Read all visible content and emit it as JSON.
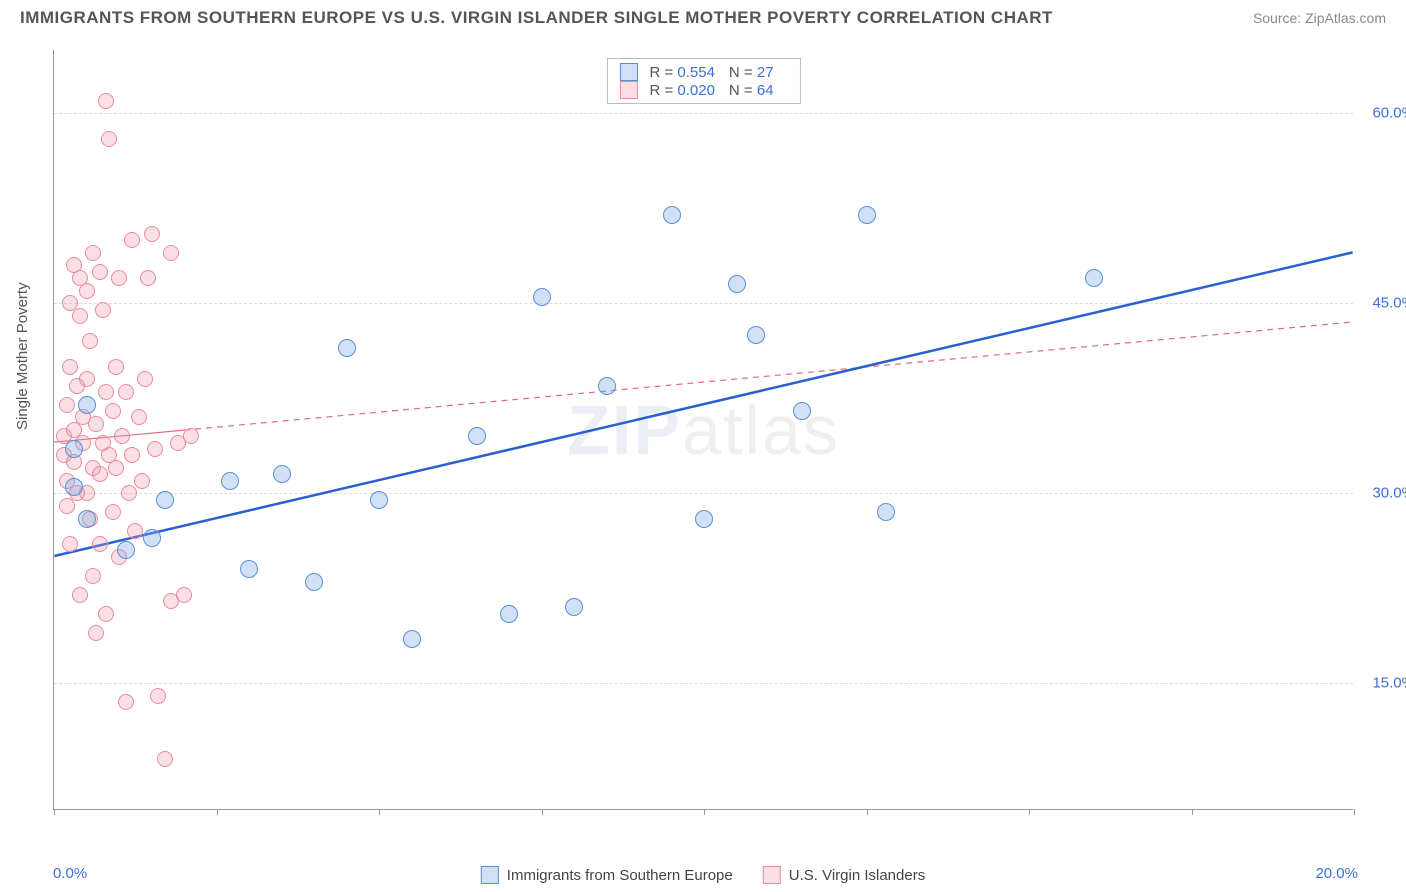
{
  "header": {
    "title": "IMMIGRANTS FROM SOUTHERN EUROPE VS U.S. VIRGIN ISLANDER SINGLE MOTHER POVERTY CORRELATION CHART",
    "source": "Source: ZipAtlas.com"
  },
  "ylabel": "Single Mother Poverty",
  "watermark_a": "ZIP",
  "watermark_b": "atlas",
  "chart": {
    "type": "scatter",
    "xlim": [
      0,
      20
    ],
    "ylim": [
      5,
      65
    ],
    "y_gridlines": [
      15,
      30,
      45,
      60
    ],
    "y_tick_labels": [
      "15.0%",
      "30.0%",
      "45.0%",
      "60.0%"
    ],
    "x_ticks": [
      0,
      2.5,
      5,
      7.5,
      10,
      12.5,
      15,
      17.5,
      20
    ],
    "x_min_label": "0.0%",
    "x_max_label": "20.0%",
    "grid_color": "#dddddd",
    "axis_color": "#999999",
    "background_color": "#ffffff",
    "label_color": "#3b6fd6",
    "series": {
      "blue": {
        "label": "Immigrants from Southern Europe",
        "color_fill": "rgba(120,170,230,0.35)",
        "color_stroke": "#5b8fd6",
        "marker_size": 18,
        "R": "0.554",
        "N": "27",
        "trend": {
          "x1": 0,
          "y1": 25,
          "x2": 20,
          "y2": 49,
          "stroke": "#2a5fd0",
          "width": 2.5,
          "dash": "none"
        },
        "points": [
          [
            0.3,
            30.5
          ],
          [
            0.3,
            33.5
          ],
          [
            0.5,
            28
          ],
          [
            0.5,
            37
          ],
          [
            1.1,
            25.5
          ],
          [
            1.5,
            26.5
          ],
          [
            1.7,
            29.5
          ],
          [
            2.7,
            31
          ],
          [
            3.0,
            24
          ],
          [
            3.5,
            31.5
          ],
          [
            4.0,
            23
          ],
          [
            4.5,
            41.5
          ],
          [
            5.0,
            29.5
          ],
          [
            5.5,
            18.5
          ],
          [
            6.5,
            34.5
          ],
          [
            7.0,
            20.5
          ],
          [
            7.5,
            45.5
          ],
          [
            8.0,
            21
          ],
          [
            8.5,
            38.5
          ],
          [
            9.5,
            52
          ],
          [
            10.0,
            28
          ],
          [
            10.5,
            46.5
          ],
          [
            10.8,
            42.5
          ],
          [
            11.5,
            36.5
          ],
          [
            12.5,
            52
          ],
          [
            12.8,
            28.5
          ],
          [
            16.0,
            47
          ]
        ]
      },
      "pink": {
        "label": "U.S. Virgin Islanders",
        "color_fill": "rgba(240,150,170,0.30)",
        "color_stroke": "#e88ba0",
        "marker_size": 16,
        "R": "0.020",
        "N": "64",
        "trend": {
          "x1": 0,
          "y1": 34,
          "x2": 20,
          "y2": 43.5,
          "stroke": "#e06a85",
          "width": 1.2,
          "dash": "6,5",
          "solid_to_x": 2.0
        },
        "points": [
          [
            0.15,
            33
          ],
          [
            0.15,
            34.5
          ],
          [
            0.2,
            37
          ],
          [
            0.2,
            31
          ],
          [
            0.2,
            29
          ],
          [
            0.25,
            40
          ],
          [
            0.25,
            45
          ],
          [
            0.25,
            26
          ],
          [
            0.3,
            48
          ],
          [
            0.3,
            35
          ],
          [
            0.3,
            32.5
          ],
          [
            0.35,
            38.5
          ],
          [
            0.35,
            30
          ],
          [
            0.4,
            47
          ],
          [
            0.4,
            44
          ],
          [
            0.4,
            22
          ],
          [
            0.45,
            36
          ],
          [
            0.45,
            34
          ],
          [
            0.5,
            46
          ],
          [
            0.5,
            39
          ],
          [
            0.5,
            30
          ],
          [
            0.55,
            42
          ],
          [
            0.55,
            28
          ],
          [
            0.6,
            49
          ],
          [
            0.6,
            32
          ],
          [
            0.6,
            23.5
          ],
          [
            0.65,
            35.5
          ],
          [
            0.65,
            19
          ],
          [
            0.7,
            47.5
          ],
          [
            0.7,
            31.5
          ],
          [
            0.7,
            26
          ],
          [
            0.75,
            34
          ],
          [
            0.75,
            44.5
          ],
          [
            0.8,
            61
          ],
          [
            0.8,
            38
          ],
          [
            0.8,
            20.5
          ],
          [
            0.85,
            58
          ],
          [
            0.85,
            33
          ],
          [
            0.9,
            36.5
          ],
          [
            0.9,
            28.5
          ],
          [
            0.95,
            40
          ],
          [
            0.95,
            32
          ],
          [
            1.0,
            47
          ],
          [
            1.0,
            25
          ],
          [
            1.05,
            34.5
          ],
          [
            1.1,
            13.5
          ],
          [
            1.1,
            38
          ],
          [
            1.15,
            30
          ],
          [
            1.2,
            50
          ],
          [
            1.2,
            33
          ],
          [
            1.25,
            27
          ],
          [
            1.3,
            36
          ],
          [
            1.35,
            31
          ],
          [
            1.4,
            39
          ],
          [
            1.45,
            47
          ],
          [
            1.5,
            50.5
          ],
          [
            1.55,
            33.5
          ],
          [
            1.6,
            14
          ],
          [
            1.7,
            9
          ],
          [
            1.8,
            49
          ],
          [
            1.8,
            21.5
          ],
          [
            1.9,
            34
          ],
          [
            2.0,
            22
          ],
          [
            2.1,
            34.5
          ]
        ]
      }
    }
  },
  "legend_top": {
    "rows": [
      {
        "swatch": "blue",
        "r_label": "R =",
        "r_val": "0.554",
        "n_label": "N =",
        "n_val": "27"
      },
      {
        "swatch": "pink",
        "r_label": "R =",
        "r_val": "0.020",
        "n_label": "N =",
        "n_val": "64"
      }
    ]
  },
  "legend_bottom": {
    "items": [
      {
        "swatch": "blue",
        "label": "Immigrants from Southern Europe"
      },
      {
        "swatch": "pink",
        "label": "U.S. Virgin Islanders"
      }
    ]
  }
}
